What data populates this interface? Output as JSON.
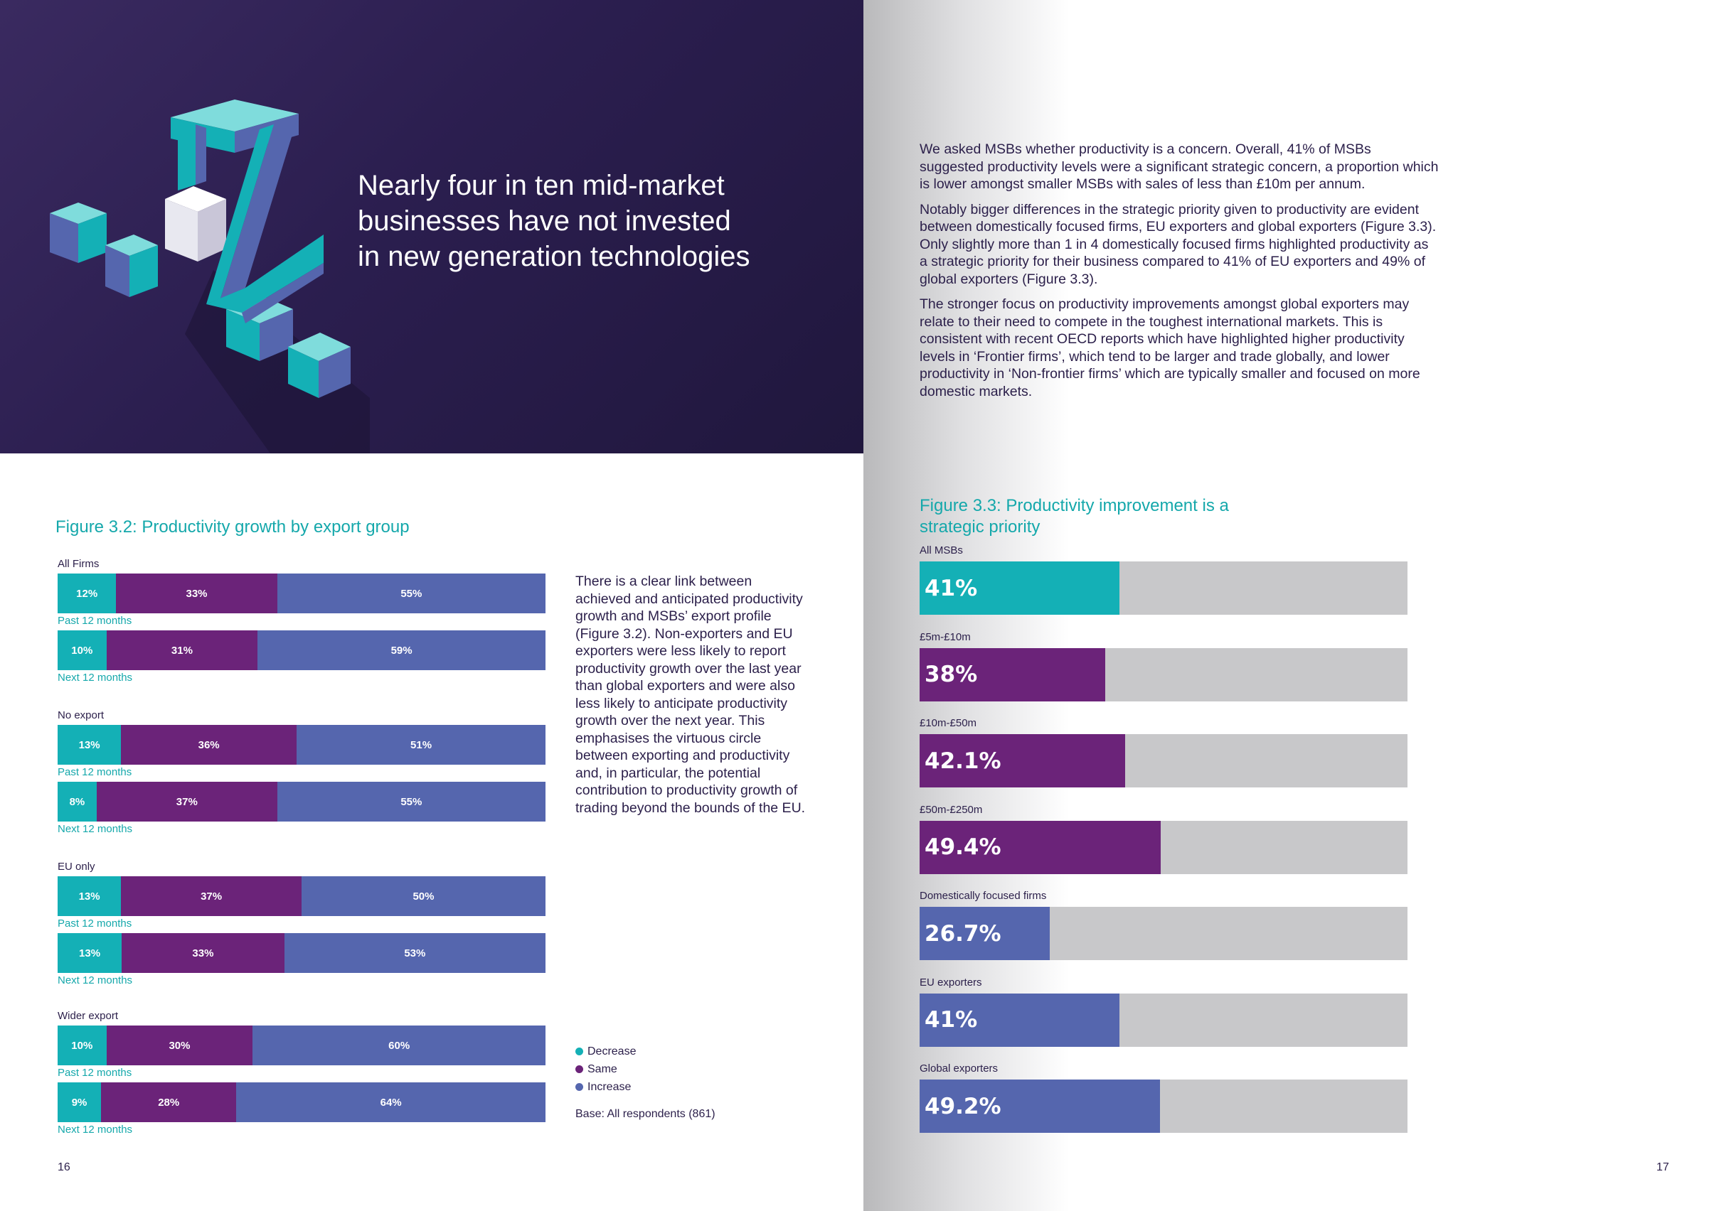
{
  "hero": {
    "title_lines": [
      "Nearly four in ten mid-market",
      "businesses have not invested",
      "in new generation technologies"
    ]
  },
  "colors": {
    "decrease": "#14b0b6",
    "same": "#6b2379",
    "increase": "#5566ae",
    "track": "#c8c8ca",
    "teal_text": "#15a8ab",
    "navy_text": "#2b1f4a"
  },
  "left_page": {
    "page_number": "16",
    "side_paragraph": "There is a clear link between achieved and anticipated productivity growth and MSBs’ export profile (Figure 3.2). Non-exporters and EU exporters were less likely to report productivity growth over the last year than global exporters and were also less likely to anticipate productivity growth over the next year. This emphasises the virtuous circle between exporting and productivity and, in particular, the potential contribution to productivity growth of trading beyond the bounds of the EU.",
    "legend": [
      {
        "label": "Decrease",
        "color": "#14b0b6"
      },
      {
        "label": "Same",
        "color": "#6b2379"
      },
      {
        "label": "Increase",
        "color": "#5566ae"
      }
    ],
    "base_note": "Base: All respondents (861)"
  },
  "right_page": {
    "page_number": "17",
    "paragraphs": [
      "We asked MSBs whether productivity is a concern. Overall, 41% of MSBs suggested productivity levels were a significant strategic concern, a proportion which is lower amongst smaller MSBs with sales of less than £10m per annum.",
      "Notably bigger differences in the strategic priority given to productivity are evident between domestically focused firms, EU exporters and global exporters (Figure 3.3). Only slightly more than 1 in 4 domestically focused firms highlighted productivity as a strategic priority for their business compared to 41% of EU exporters and 49% of global exporters (Figure 3.3).",
      "The stronger focus on productivity improvements amongst global exporters may relate to their need to compete in the toughest international markets. This is consistent with recent OECD reports which have highlighted higher productivity levels in ‘Frontier firms’, which tend to be larger and trade globally, and lower productivity in ‘Non-frontier firms’ which are typically smaller and focused on more domestic markets."
    ]
  },
  "chart_data": [
    {
      "type": "bar",
      "stacked": true,
      "orientation": "horizontal",
      "title": "Figure 3.2: Productivity growth by export group",
      "series_names": [
        "Decrease",
        "Same",
        "Increase"
      ],
      "groups": [
        {
          "label": "All Firms",
          "bars": [
            {
              "period": "Past 12 months",
              "values": [
                12,
                33,
                55
              ],
              "labels": [
                "12%",
                "33%",
                "55%"
              ]
            },
            {
              "period": "Next 12 months",
              "values": [
                10,
                31,
                59
              ],
              "labels": [
                "10%",
                "31%",
                "59%"
              ]
            }
          ]
        },
        {
          "label": "No export",
          "bars": [
            {
              "period": "Past 12 months",
              "values": [
                13,
                36,
                51
              ],
              "labels": [
                "13%",
                "36%",
                "51%"
              ]
            },
            {
              "period": "Next 12 months",
              "values": [
                8,
                37,
                55
              ],
              "labels": [
                "8%",
                "37%",
                "55%"
              ]
            }
          ]
        },
        {
          "label": "EU only",
          "bars": [
            {
              "period": "Past 12 months",
              "values": [
                13,
                37,
                50
              ],
              "labels": [
                "13%",
                "37%",
                "50%"
              ]
            },
            {
              "period": "Next 12 months",
              "values": [
                13,
                33,
                53
              ],
              "labels": [
                "13%",
                "33%",
                "53%"
              ]
            }
          ]
        },
        {
          "label": "Wider export",
          "bars": [
            {
              "period": "Past 12 months",
              "values": [
                10,
                30,
                60
              ],
              "labels": [
                "10%",
                "30%",
                "60%"
              ]
            },
            {
              "period": "Next 12 months",
              "values": [
                9,
                28,
                64
              ],
              "labels": [
                "9%",
                "28%",
                "64%"
              ]
            }
          ]
        }
      ]
    },
    {
      "type": "bar",
      "orientation": "horizontal",
      "title": "Figure 3.3: Productivity improvement is a strategic priority",
      "xlim": [
        0,
        100
      ],
      "bars": [
        {
          "label": "All MSBs",
          "value": 41,
          "value_label": "41%",
          "color": "#14b0b6"
        },
        {
          "label": "£5m-£10m",
          "value": 38,
          "value_label": "38%",
          "color": "#6b2379"
        },
        {
          "label": "£10m-£50m",
          "value": 42.1,
          "value_label": "42.1%",
          "color": "#6b2379"
        },
        {
          "label": "£50m-£250m",
          "value": 49.4,
          "value_label": "49.4%",
          "color": "#6b2379"
        },
        {
          "label": "Domestically focused firms",
          "value": 26.7,
          "value_label": "26.7%",
          "color": "#5566ae"
        },
        {
          "label": "EU exporters",
          "value": 41,
          "value_label": "41%",
          "color": "#5566ae"
        },
        {
          "label": "Global exporters",
          "value": 49.2,
          "value_label": "49.2%",
          "color": "#5566ae"
        }
      ]
    }
  ]
}
